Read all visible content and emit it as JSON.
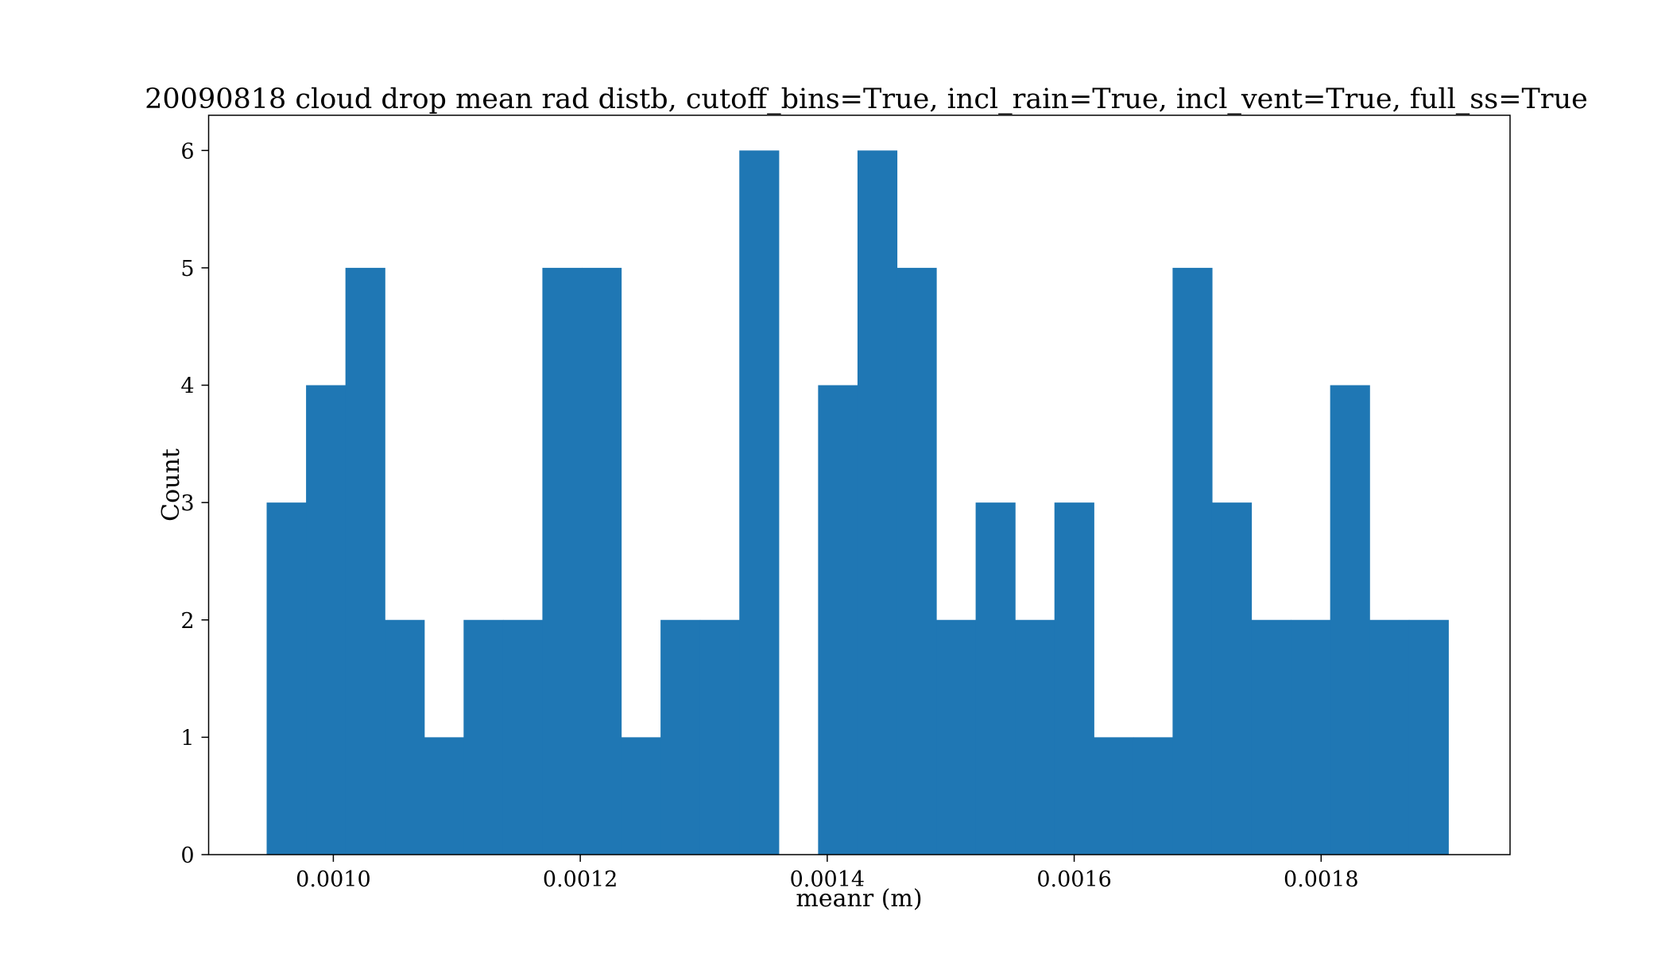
{
  "chart_data": {
    "type": "bar",
    "title": "20090818 cloud drop mean rad distb, cutoff_bins=True, incl_rain=True, incl_vent=True, full_ss=True",
    "xlabel": "meanr (m)",
    "ylabel": "Count",
    "xlim": [
      0.000899,
      0.001953
    ],
    "ylim": [
      0,
      6.3
    ],
    "bin_start": 0.000946,
    "bin_width": 3.19e-05,
    "values": [
      3,
      4,
      5,
      2,
      1,
      2,
      2,
      5,
      5,
      1,
      2,
      2,
      6,
      0,
      4,
      6,
      5,
      2,
      3,
      2,
      3,
      1,
      1,
      5,
      3,
      2,
      2,
      4,
      2,
      2
    ],
    "x_ticks": [
      0.001,
      0.0012,
      0.0014,
      0.0016,
      0.0018
    ],
    "x_tick_labels": [
      "0.0010",
      "0.0012",
      "0.0014",
      "0.0016",
      "0.0018"
    ],
    "y_ticks": [
      0,
      1,
      2,
      3,
      4,
      5,
      6
    ],
    "y_tick_labels": [
      "0",
      "1",
      "2",
      "3",
      "4",
      "5",
      "6"
    ],
    "grid": false,
    "color": "#1f77b4"
  }
}
